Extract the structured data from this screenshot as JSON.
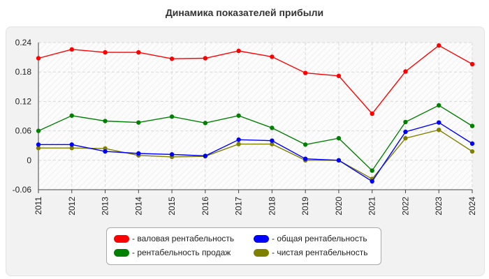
{
  "chart_data": {
    "type": "line",
    "title": "Динамика показателей прибыли",
    "categories": [
      "2011",
      "2012",
      "2013",
      "2014",
      "2015",
      "2016",
      "2017",
      "2018",
      "2019",
      "2020",
      "2021",
      "2022",
      "2023",
      "2024"
    ],
    "ylim": [
      -0.06,
      0.24
    ],
    "yticks": [
      -0.06,
      0,
      0.06,
      0.12,
      0.18,
      0.24
    ],
    "ytick_labels": [
      "-0.06",
      "0",
      "0.06",
      "0.12",
      "0.18",
      "0.24"
    ],
    "grid": true,
    "legend_position": "bottom",
    "series": [
      {
        "name": "- валовая рентабельность",
        "color": "#ff0000",
        "values": [
          0.208,
          0.226,
          0.22,
          0.22,
          0.207,
          0.208,
          0.223,
          0.211,
          0.178,
          0.172,
          0.095,
          0.181,
          0.234,
          0.196
        ]
      },
      {
        "name": "- общая рентабельность",
        "color": "#0000ff",
        "values": [
          0.032,
          0.032,
          0.018,
          0.014,
          0.012,
          0.009,
          0.042,
          0.04,
          0.003,
          0.0,
          -0.043,
          0.058,
          0.077,
          0.034
        ]
      },
      {
        "name": "- рентабельность продаж",
        "color": "#008000",
        "values": [
          0.06,
          0.091,
          0.08,
          0.077,
          0.089,
          0.076,
          0.091,
          0.066,
          0.032,
          0.045,
          -0.021,
          0.078,
          0.112,
          0.07
        ]
      },
      {
        "name": "- чистая рентабельность",
        "color": "#808000",
        "values": [
          0.025,
          0.025,
          0.024,
          0.01,
          0.007,
          0.008,
          0.033,
          0.033,
          0.0,
          0.0,
          -0.038,
          0.045,
          0.062,
          0.018
        ]
      }
    ]
  }
}
